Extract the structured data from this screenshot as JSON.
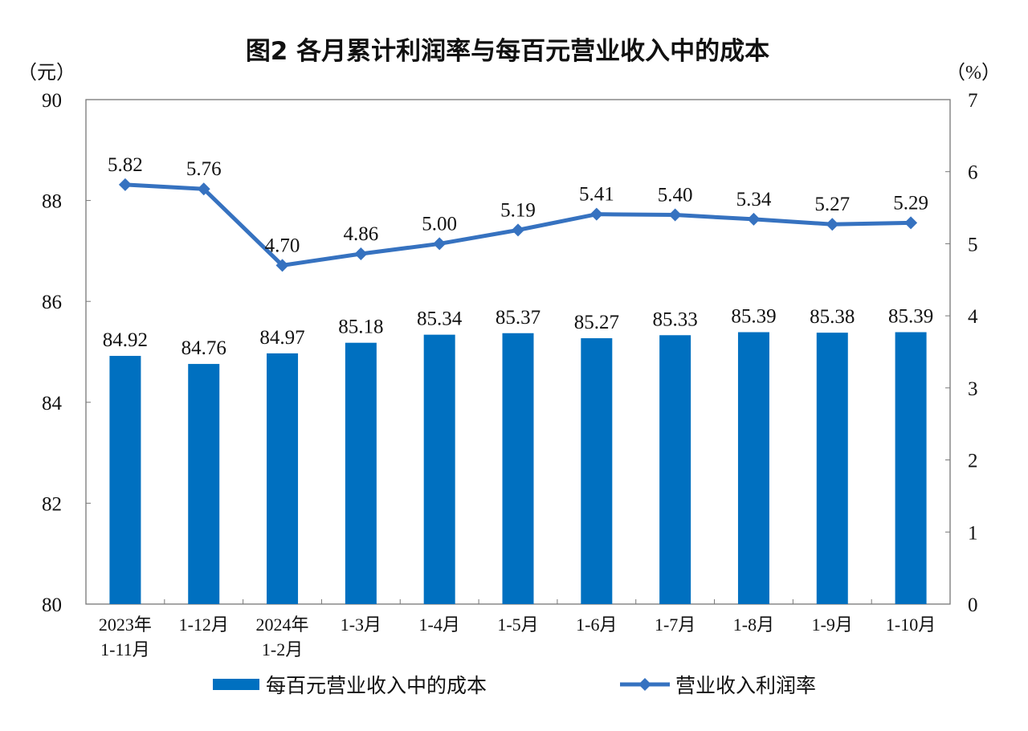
{
  "chart_data": {
    "type": "bar+line",
    "title": "图2  各月累计利润率与每百元营业收入中的成本",
    "categories": [
      [
        "2023年",
        "1-11月"
      ],
      [
        "1-12月"
      ],
      [
        "2024年",
        "1-2月"
      ],
      [
        "1-3月"
      ],
      [
        "1-4月"
      ],
      [
        "1-5月"
      ],
      [
        "1-6月"
      ],
      [
        "1-7月"
      ],
      [
        "1-8月"
      ],
      [
        "1-9月"
      ],
      [
        "1-10月"
      ]
    ],
    "left_axis": {
      "unit": "（元）",
      "ylim": [
        80,
        90
      ],
      "ticks": [
        80,
        82,
        84,
        86,
        88,
        90
      ]
    },
    "right_axis": {
      "unit": "（%）",
      "ylim": [
        0,
        7
      ],
      "ticks": [
        0,
        1,
        2,
        3,
        4,
        5,
        6,
        7
      ]
    },
    "series": [
      {
        "name": "每百元营业收入中的成本",
        "type": "bar",
        "axis": "left",
        "color": "#0070C0",
        "values": [
          84.92,
          84.76,
          84.97,
          85.18,
          85.34,
          85.37,
          85.27,
          85.33,
          85.39,
          85.38,
          85.39
        ]
      },
      {
        "name": "营业收入利润率",
        "type": "line",
        "axis": "right",
        "color": "#3672C0",
        "marker": "diamond",
        "values": [
          5.82,
          5.76,
          4.7,
          4.86,
          5.0,
          5.19,
          5.41,
          5.4,
          5.34,
          5.27,
          5.29
        ]
      }
    ],
    "legend": "bottom",
    "grid": false
  }
}
